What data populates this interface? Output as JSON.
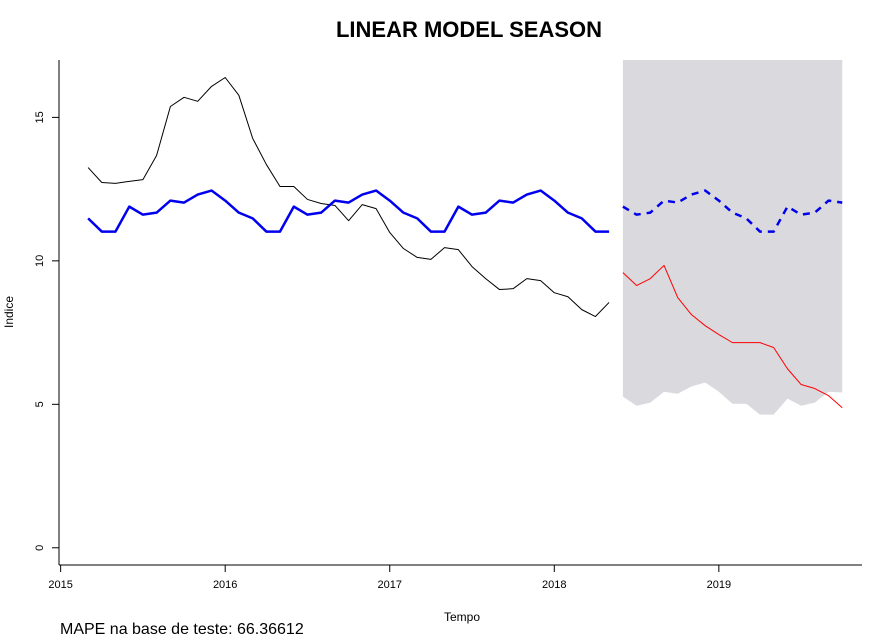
{
  "chart_data": {
    "type": "line",
    "title": "LINEAR MODEL SEASON",
    "xlabel": "Tempo",
    "ylabel": "Indice",
    "annotation": "MAPE na base de teste:  66.36612",
    "annotation_color": "#1a1aff",
    "xlim": [
      2014.99,
      2019.87
    ],
    "ylim": [
      -0.6,
      17.0
    ],
    "xticks": [
      2015,
      2016,
      2017,
      2018,
      2019
    ],
    "yticks": [
      0,
      5,
      10,
      15
    ],
    "interval": {
      "color": "#d9d9de",
      "x": [
        2018.417,
        2018.5,
        2018.583,
        2018.667,
        2018.75,
        2018.833,
        2018.917,
        2019,
        2019.083,
        2019.167,
        2019.25,
        2019.333,
        2019.417,
        2019.5,
        2019.583,
        2019.667,
        2019.75
      ],
      "lower": [
        5.27,
        4.95,
        5.06,
        5.44,
        5.37,
        5.62,
        5.76,
        5.44,
        5.02,
        5.02,
        4.64,
        4.64,
        5.2,
        4.95,
        5.06,
        5.44,
        5.41
      ]
    },
    "series": [
      {
        "color": "#000000",
        "width": 1,
        "dashed": false,
        "x": [
          2015.167,
          2015.25,
          2015.333,
          2015.417,
          2015.5,
          2015.583,
          2015.667,
          2015.75,
          2015.833,
          2015.917,
          2016,
          2016.083,
          2016.167,
          2016.25,
          2016.333,
          2016.417,
          2016.5,
          2016.583,
          2016.667,
          2016.75,
          2016.833,
          2016.917,
          2017,
          2017.083,
          2017.167,
          2017.25,
          2017.333,
          2017.417,
          2017.5,
          2017.583,
          2017.667,
          2017.75,
          2017.833,
          2017.917,
          2018,
          2018.083,
          2018.167,
          2018.25,
          2018.333
        ],
        "values": [
          13.25,
          12.73,
          12.7,
          12.77,
          12.83,
          13.67,
          15.38,
          15.7,
          15.56,
          16.08,
          16.39,
          15.77,
          14.27,
          13.36,
          12.59,
          12.59,
          12.14,
          12.0,
          11.93,
          11.4,
          11.96,
          11.82,
          10.99,
          10.43,
          10.12,
          10.05,
          10.46,
          10.39,
          9.8,
          9.38,
          9.0,
          9.03,
          9.38,
          9.31,
          8.89,
          8.75,
          8.3,
          8.06,
          8.55
        ]
      },
      {
        "color": "#0000ee",
        "width": 2.5,
        "dashed": false,
        "x": [
          2015.167,
          2015.25,
          2015.333,
          2015.417,
          2015.5,
          2015.583,
          2015.667,
          2015.75,
          2015.833,
          2015.917,
          2016,
          2016.083,
          2016.167,
          2016.25,
          2016.333,
          2016.417,
          2016.5,
          2016.583,
          2016.667,
          2016.75,
          2016.833,
          2016.917,
          2017,
          2017.083,
          2017.167,
          2017.25,
          2017.333,
          2017.417,
          2017.5,
          2017.583,
          2017.667,
          2017.75,
          2017.833,
          2017.917,
          2018,
          2018.083,
          2018.167,
          2018.25,
          2018.333
        ],
        "values": [
          11.48,
          11.02,
          11.02,
          11.89,
          11.61,
          11.68,
          12.1,
          12.03,
          12.31,
          12.45,
          12.1,
          11.68,
          11.48,
          11.02,
          11.02,
          11.89,
          11.61,
          11.68,
          12.1,
          12.03,
          12.31,
          12.45,
          12.1,
          11.68,
          11.48,
          11.02,
          11.02,
          11.89,
          11.61,
          11.68,
          12.1,
          12.03,
          12.31,
          12.45,
          12.1,
          11.68,
          11.48,
          11.02,
          11.02
        ]
      },
      {
        "color": "#0000ee",
        "width": 2.5,
        "dashed": true,
        "x": [
          2018.417,
          2018.5,
          2018.583,
          2018.667,
          2018.75,
          2018.833,
          2018.917,
          2019,
          2019.083,
          2019.167,
          2019.25,
          2019.333,
          2019.417,
          2019.5,
          2019.583,
          2019.667,
          2019.75
        ],
        "values": [
          11.89,
          11.61,
          11.68,
          12.1,
          12.03,
          12.31,
          12.45,
          12.1,
          11.68,
          11.48,
          11.02,
          11.02,
          11.89,
          11.61,
          11.68,
          12.1,
          12.03
        ]
      },
      {
        "color": "#ff0000",
        "width": 1,
        "dashed": false,
        "x": [
          2018.417,
          2018.5,
          2018.583,
          2018.667,
          2018.75,
          2018.833,
          2018.917,
          2019,
          2019.083,
          2019.167,
          2019.25,
          2019.333,
          2019.417,
          2019.5,
          2019.583,
          2019.667,
          2019.75
        ],
        "values": [
          9.59,
          9.14,
          9.38,
          9.84,
          8.72,
          8.13,
          7.74,
          7.43,
          7.15,
          7.15,
          7.15,
          6.98,
          6.24,
          5.69,
          5.55,
          5.3,
          4.88
        ]
      }
    ]
  }
}
